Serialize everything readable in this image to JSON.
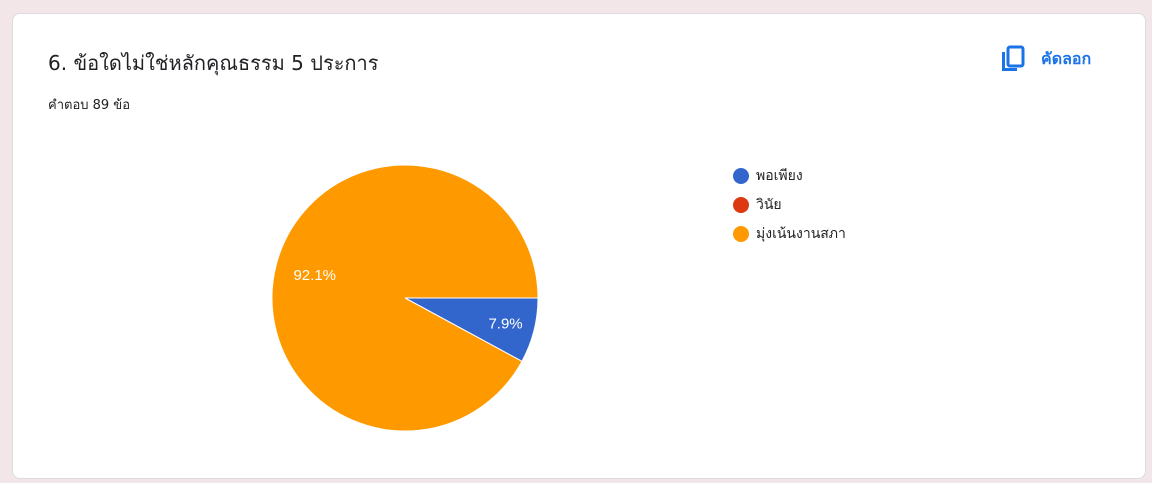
{
  "question": {
    "title": "6. ข้อใดไม่ใช่หลักคุณธรรม 5 ประการ",
    "response_count": "คำตอบ 89 ข้อ"
  },
  "toolbar": {
    "copy_label": "คัดลอก",
    "copy_icon": "copy-icon"
  },
  "chart_data": {
    "type": "pie",
    "slices": [
      {
        "label": "พอเพียง",
        "value": 7.9,
        "display": "7.9%",
        "color": "#3366cc"
      },
      {
        "label": "วินัย",
        "value": 0,
        "display": "",
        "color": "#dc3912"
      },
      {
        "label": "มุ่งเน้นงานสภา",
        "value": 92.1,
        "display": "92.1%",
        "color": "#ff9900"
      }
    ],
    "legend_position": "right"
  }
}
